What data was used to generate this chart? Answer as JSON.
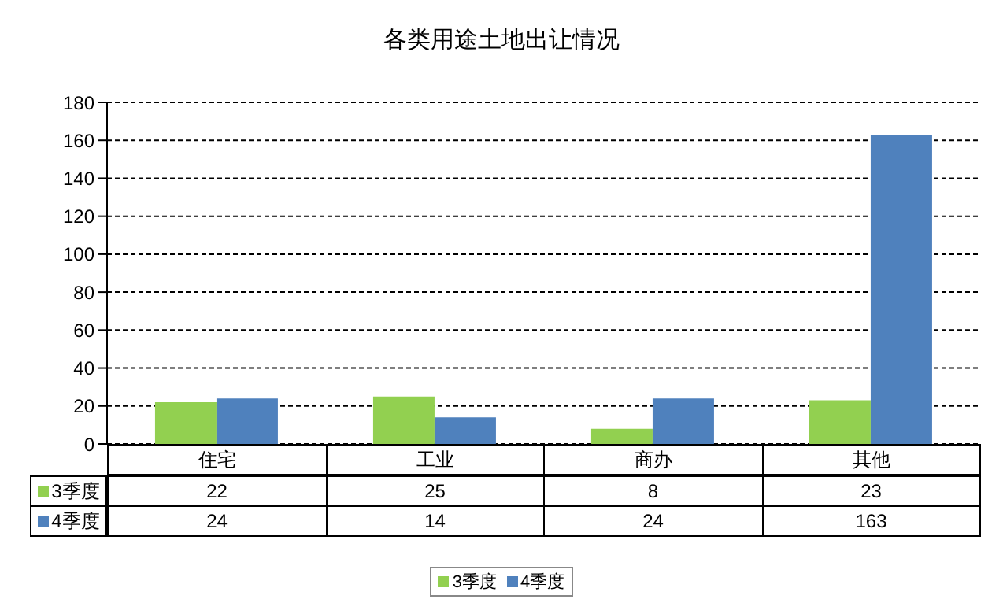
{
  "chart_data": {
    "type": "bar",
    "title": "各类用途土地出让情况",
    "categories": [
      "住宅",
      "工业",
      "商办",
      "其他"
    ],
    "series": [
      {
        "name": "3季度",
        "color": "#92d050",
        "values": [
          22,
          25,
          8,
          23
        ]
      },
      {
        "name": "4季度",
        "color": "#4f81bd",
        "values": [
          24,
          14,
          24,
          163
        ]
      }
    ],
    "ylim": [
      0,
      180
    ],
    "yticks": [
      0,
      20,
      40,
      60,
      80,
      100,
      120,
      140,
      160,
      180
    ],
    "grid": "y",
    "legend": "bottom",
    "data_labels": true
  }
}
